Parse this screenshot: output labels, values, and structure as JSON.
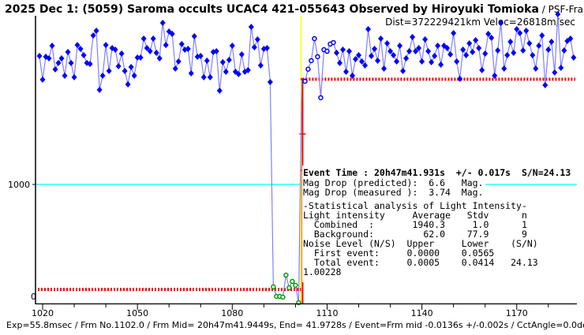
{
  "header": {
    "title": "2025 Dec 1: (5059) Saroma occults UCAC4 421-055643 Observed by Hiroyuki Tomioka",
    "subtitle": " / PSF-Frame Photometry /",
    "dist_veloc": "Dist=372229421km Veloc=26818m/sec"
  },
  "stats": {
    "event_time": "Event Time : 20h47m41.931s  +/- 0.017s  S/N=24.13",
    "lines": [
      "Mag Drop (predicted):  6.6   Mag.",
      "Mag Drop (measured ):  3.74  Mag.",
      "-Statistical analysis of Light Intensity-",
      "Light intensity     Average   Stdv      n",
      "  Combined  :       1940.3     1.0      1",
      "  Background:         62.0    77.9      9",
      "Noise Level (N/S)  Upper     Lower    (S/N)",
      "  First event:     0.0000    0.0565",
      "  Total event:     0.0005    0.0414   24.13",
      "1.00228"
    ]
  },
  "footer": "Exp=55.8msec / Frm No.1102.0 / Frm Mid= 20h47m41.9449s,  End= 41.9728s / Event=Frm mid -0.0136s +/-0.002s / CctAngle=0.0deg",
  "colors": {
    "points": "#0000ff",
    "line": "#8080ff",
    "background_points": "#00a000",
    "level": "#ff0000",
    "threshold": "#00ffff",
    "event_marker": "#ffff00"
  },
  "chart_data": {
    "type": "line",
    "xlabel": "",
    "ylabel": "",
    "xlim": [
      1018,
      1189
    ],
    "ylim": [
      -63,
      2510
    ],
    "x_ticks": [
      "1020",
      "1050",
      "1080",
      "1110",
      "1140",
      "1170"
    ],
    "y_ticks": [
      "0",
      "1000"
    ],
    "threshold_value": 1000,
    "combined_level": 1940.3,
    "background_level": 62.0,
    "event_frame": 1102,
    "background_frames": [
      1093,
      1101
    ],
    "post_event_open_frames": [
      1103,
      1112
    ],
    "x_first": 1019,
    "values": [
      2148,
      1937,
      2141,
      2127,
      2239,
      2028,
      2085,
      2127,
      1972,
      2183,
      2085,
      1958,
      2246,
      2211,
      2155,
      2085,
      2077,
      2331,
      2373,
      1845,
      1972,
      2246,
      2014,
      2218,
      2204,
      2056,
      2169,
      2014,
      1894,
      2049,
      1972,
      2134,
      2134,
      2303,
      2218,
      2190,
      2303,
      2176,
      2127,
      2444,
      2246,
      2366,
      2345,
      2035,
      2099,
      2254,
      2204,
      2211,
      1993,
      2324,
      2141,
      2148,
      1958,
      2106,
      1958,
      2183,
      2190,
      1838,
      2092,
      2007,
      2113,
      2239,
      2007,
      1986,
      2162,
      2007,
      2021,
      2408,
      2225,
      2296,
      2063,
      2211,
      2218,
      1915,
      85,
      0,
      0,
      -7,
      190,
      77,
      134,
      99,
      -56,
      1940,
      1922,
      2030,
      2106,
      2303,
      2141,
      1775,
      2204,
      2190,
      2254,
      2268,
      2176,
      2085,
      2204,
      2007,
      2190,
      1972,
      2120,
      2155,
      2099,
      2063,
      2387,
      2148,
      2211,
      2106,
      2303,
      2035,
      2261,
      2190,
      2155,
      2099,
      2239,
      2014,
      2127,
      2190,
      2317,
      2190,
      2218,
      2099,
      2296,
      2190,
      2092,
      2148,
      2239,
      2070,
      2239,
      2218,
      2162,
      2352,
      2099,
      1944,
      2204,
      2155,
      2261,
      2183,
      2289,
      2218,
      2021,
      2169,
      2345,
      2310,
      1972,
      2197,
      2444,
      2035,
      2155,
      2275,
      2176,
      2387,
      2352,
      2197,
      2373,
      2261,
      2155,
      2035,
      2239,
      2331,
      1887,
      2204,
      2275,
      2000,
      2521,
      2042,
      2197,
      2282,
      2303,
      2134
    ]
  }
}
